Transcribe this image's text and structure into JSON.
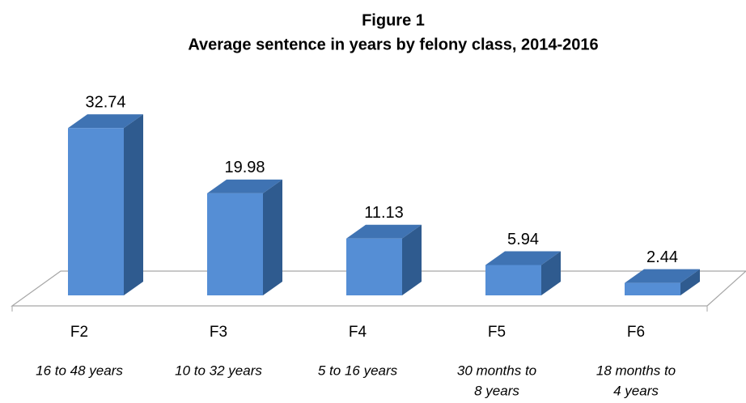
{
  "chart_data": {
    "type": "bar",
    "title": "Figure 1",
    "subtitle": "Average sentence in years by felony class, 2014-2016",
    "categories": [
      "F2",
      "F3",
      "F4",
      "F5",
      "F6"
    ],
    "category_notes": [
      [
        "16 to 48 years"
      ],
      [
        "10 to 32 years"
      ],
      [
        "5 to 16 years"
      ],
      [
        "30 months to",
        "8 years"
      ],
      [
        "18 months to",
        "4 years"
      ]
    ],
    "values": [
      32.74,
      19.98,
      11.13,
      5.94,
      2.44
    ],
    "color": "#558ed5",
    "ylim": [
      0,
      35
    ]
  }
}
